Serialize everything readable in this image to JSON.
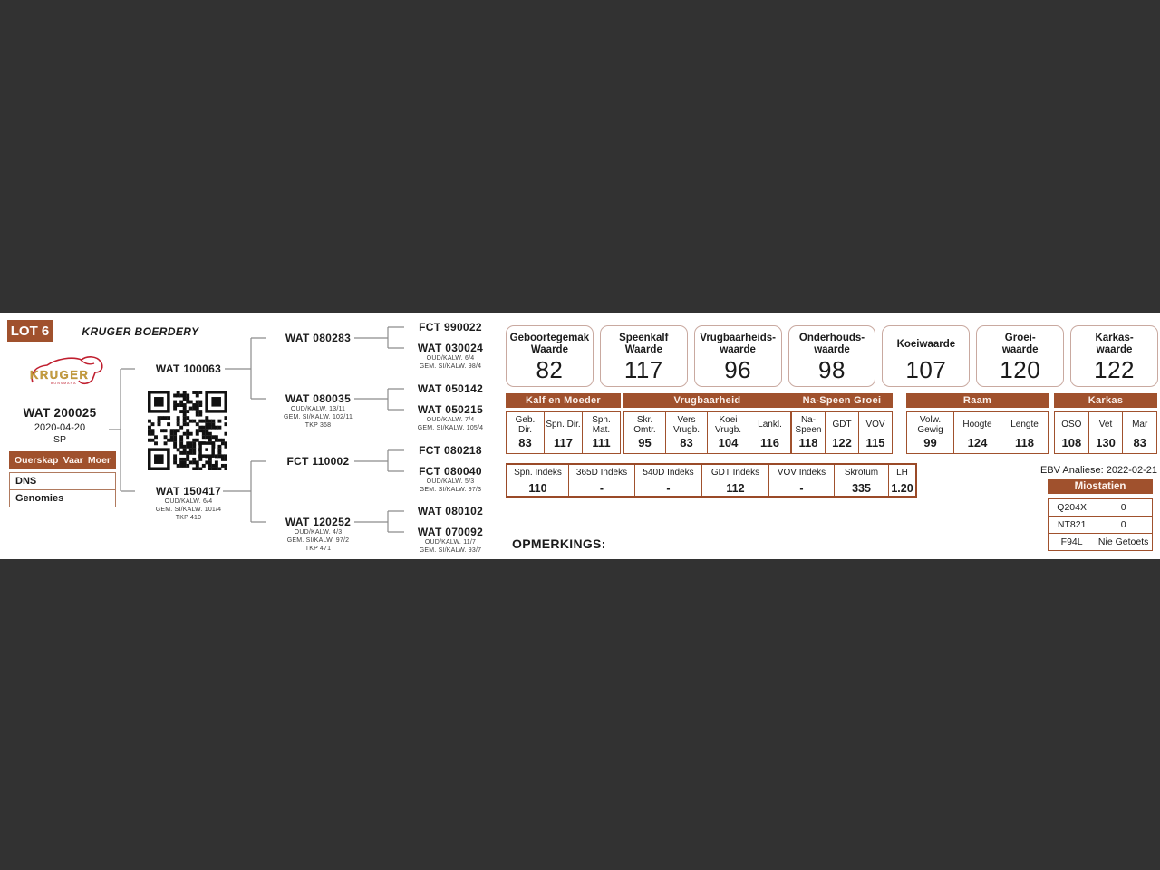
{
  "page": {
    "lot": "LOT 6",
    "farm": "KRUGER BOERDERY",
    "opmerkings_label": "OPMERKINGS:",
    "ebv_analysis_date": "EBV Analiese: 2022-02-21",
    "colors": {
      "accent_brown": "#a0512d",
      "box_border": "#c9a9a0",
      "background": "#323232",
      "logo_red": "#c01f2f",
      "logo_gold": "#c59d3f"
    },
    "icons": {
      "qr": "qr-code",
      "logo": "kruger-cattle-logo"
    }
  },
  "animal": {
    "id": "WAT 200025",
    "birthdate": "2020-04-20",
    "sex": "SP"
  },
  "buttons": {
    "ouerskap": "Ouerskap",
    "vaar": "Vaar",
    "moer": "Moer",
    "dns": "DNS",
    "genomies": "Genomies"
  },
  "logo": {
    "brand": "KRUGER",
    "sub": "BONSMARA"
  },
  "pedigree": {
    "sire": {
      "id": "WAT 100063"
    },
    "dam": {
      "id": "WAT 150417",
      "lines": [
        "OUD/KALW. 6/4",
        "GEM. SI/KALW. 101/4",
        "TKP 410"
      ]
    },
    "gen2": [
      {
        "id": "WAT 080283"
      },
      {
        "id": "WAT 080035",
        "lines": [
          "OUD/KALW. 13/11",
          "GEM. SI/KALW. 102/11",
          "TKP 368"
        ]
      },
      {
        "id": "FCT 110002"
      },
      {
        "id": "WAT 120252",
        "lines": [
          "OUD/KALW. 4/3",
          "GEM. SI/KALW. 97/2",
          "TKP 471"
        ]
      }
    ],
    "gen3": [
      {
        "id": "FCT 990022"
      },
      {
        "id": "WAT 030024",
        "lines": [
          "OUD/KALW. 6/4",
          "GEM. SI/KALW. 98/4"
        ]
      },
      {
        "id": "WAT 050142"
      },
      {
        "id": "WAT 050215",
        "lines": [
          "OUD/KALW. 7/4",
          "GEM. SI/KALW. 105/4"
        ]
      },
      {
        "id": "FCT 080218"
      },
      {
        "id": "FCT 080040",
        "lines": [
          "OUD/KALW. 5/3",
          "GEM. SI/KALW. 97/3"
        ]
      },
      {
        "id": "WAT 080102"
      },
      {
        "id": "WAT 070092",
        "lines": [
          "OUD/KALW. 11/7",
          "GEM. SI/KALW. 93/7"
        ]
      }
    ]
  },
  "ebv_boxes": [
    {
      "line1": "Geboortegemak",
      "line2": "Waarde",
      "value": "82"
    },
    {
      "line1": "Speenkalf",
      "line2": "Waarde",
      "value": "117"
    },
    {
      "line1": "Vrugbaarheids-",
      "line2": "waarde",
      "value": "96"
    },
    {
      "line1": "Onderhouds-",
      "line2": "waarde",
      "value": "98"
    },
    {
      "line1": "Koeiwaarde",
      "line2": "",
      "value": "107"
    },
    {
      "line1": "Groei-",
      "line2": "waarde",
      "value": "120"
    },
    {
      "line1": "Karkas-",
      "line2": "waarde",
      "value": "122"
    }
  ],
  "main_table": {
    "groups": [
      {
        "name": "Kalf en Moeder",
        "cols": [
          {
            "label": "Geb. Dir.",
            "value": "83"
          },
          {
            "label": "Spn. Dir.",
            "value": "117"
          },
          {
            "label": "Spn. Mat.",
            "value": "111"
          }
        ]
      },
      {
        "name": "Vrugbaarheid",
        "cols": [
          {
            "label": "Skr. Omtr.",
            "value": "95"
          },
          {
            "label": "Vers Vrugb.",
            "value": "83"
          },
          {
            "label": "Koei Vrugb.",
            "value": "104"
          },
          {
            "label": "Lankl.",
            "value": "116"
          }
        ]
      },
      {
        "name": "Na-Speen Groei",
        "cols": [
          {
            "label": "Na-Speen",
            "value": "118"
          },
          {
            "label": "GDT",
            "value": "122"
          },
          {
            "label": "VOV",
            "value": "115"
          }
        ]
      },
      {
        "name": "Raam",
        "cols": [
          {
            "label": "Volw. Gewig",
            "value": "99"
          },
          {
            "label": "Hoogte",
            "value": "124"
          },
          {
            "label": "Lengte",
            "value": "118"
          }
        ]
      },
      {
        "name": "Karkas",
        "cols": [
          {
            "label": "OSO",
            "value": "108"
          },
          {
            "label": "Vet",
            "value": "130"
          },
          {
            "label": "Mar",
            "value": "83"
          }
        ]
      }
    ]
  },
  "index_table": [
    {
      "label": "Spn. Indeks",
      "value": "110"
    },
    {
      "label": "365D Indeks",
      "value": "-"
    },
    {
      "label": "540D Indeks",
      "value": "-"
    },
    {
      "label": "GDT Indeks",
      "value": "112"
    },
    {
      "label": "VOV Indeks",
      "value": "-"
    },
    {
      "label": "Skrotum",
      "value": "335"
    },
    {
      "label": "LH",
      "value": "1.20"
    }
  ],
  "miostatien": {
    "title": "Miostatien",
    "rows": [
      {
        "name": "Q204X",
        "value": "0"
      },
      {
        "name": "NT821",
        "value": "0"
      },
      {
        "name": "F94L",
        "value": "Nie Getoets"
      }
    ]
  }
}
